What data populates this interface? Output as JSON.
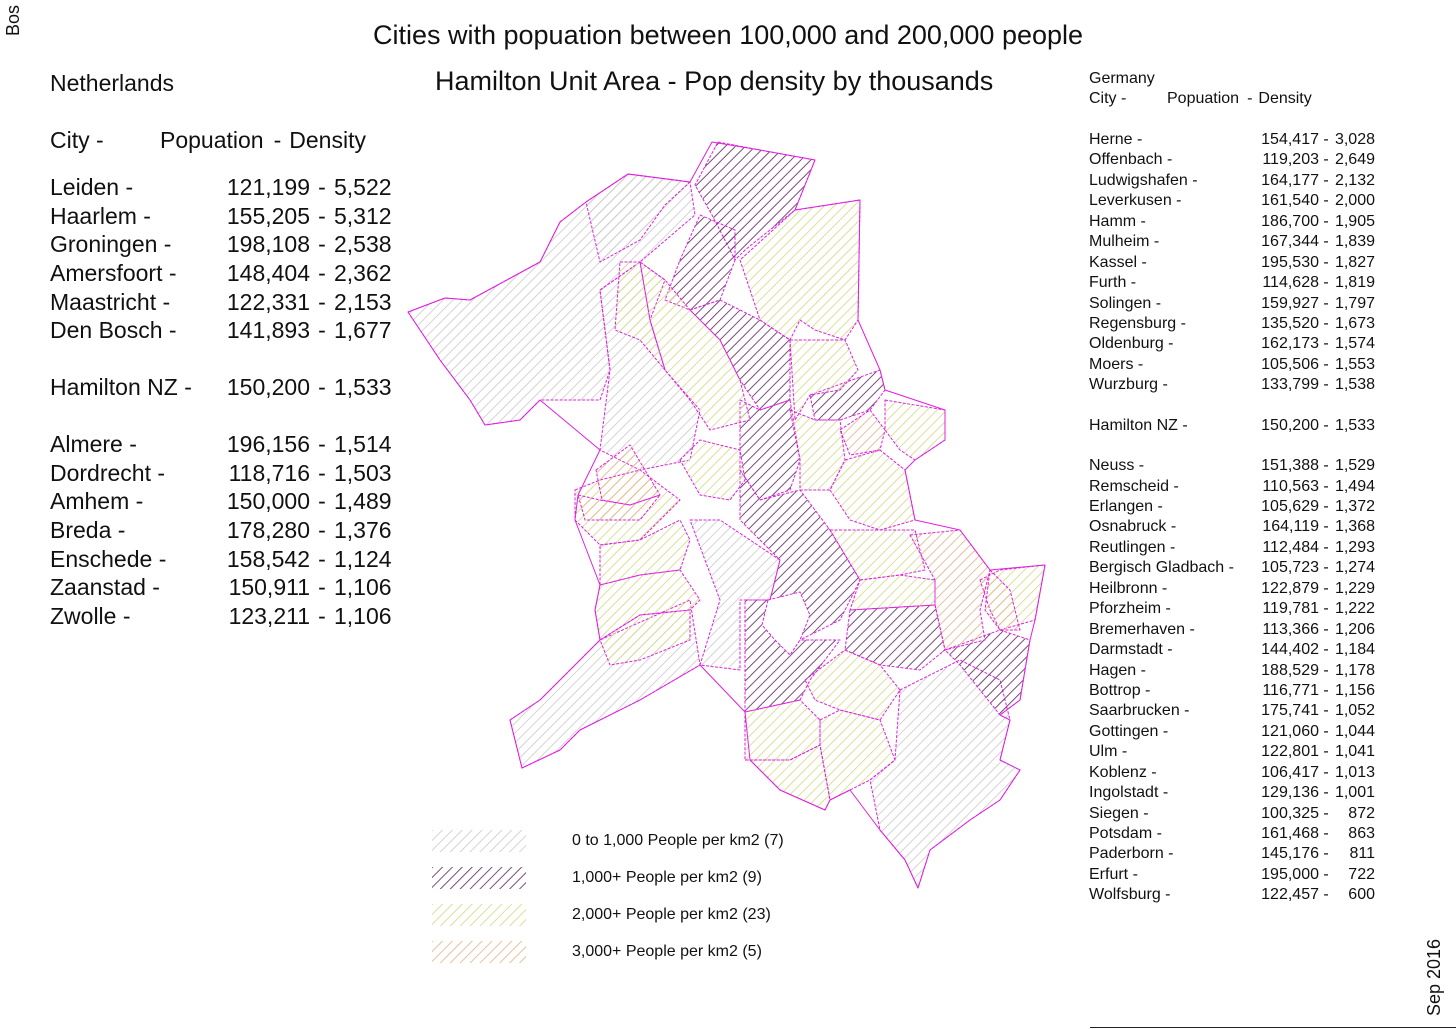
{
  "side_left": "Bos",
  "side_right": "Sep 2016",
  "title": "Cities with popuation between 100,000 and 200,000 people",
  "map_title": "Hamilton Unit Area - Pop density by thousands",
  "netherlands": {
    "country": "Netherlands",
    "header": {
      "city": "City -",
      "population": "Popuation",
      "sep": "-",
      "density": "Density"
    },
    "rows_top": [
      {
        "city": "Leiden -",
        "population": "121,199",
        "density": "5,522"
      },
      {
        "city": "Haarlem -",
        "population": "155,205",
        "density": "5,312"
      },
      {
        "city": "Groningen -",
        "population": "198,108",
        "density": "2,538"
      },
      {
        "city": "Amersfoort -",
        "population": "148,404",
        "density": "2,362"
      },
      {
        "city": "Maastricht -",
        "population": "122,331",
        "density": "2,153"
      },
      {
        "city": "Den Bosch -",
        "population": "141,893",
        "density": "1,677"
      }
    ],
    "hamilton": {
      "city": "Hamilton NZ -",
      "population": "150,200",
      "density": "1,533"
    },
    "rows_bottom": [
      {
        "city": "Almere -",
        "population": "196,156",
        "density": "1,514"
      },
      {
        "city": "Dordrecht -",
        "population": "118,716",
        "density": "1,503"
      },
      {
        "city": "Amhem -",
        "population": "150,000",
        "density": "1,489"
      },
      {
        "city": "Breda -",
        "population": "178,280",
        "density": "1,376"
      },
      {
        "city": "Enschede -",
        "population": "158,542",
        "density": "1,124"
      },
      {
        "city": "Zaanstad -",
        "population": "150,911",
        "density": "1,106"
      },
      {
        "city": "Zwolle -",
        "population": "123,211",
        "density": "1,106"
      }
    ]
  },
  "germany": {
    "country": "Germany",
    "header": {
      "city": "City -",
      "population": "Popuation",
      "sep": "-",
      "density": "Density"
    },
    "rows_top": [
      {
        "city": "Herne -",
        "population": "154,417",
        "density": "3,028"
      },
      {
        "city": "Offenbach -",
        "population": "119,203",
        "density": "2,649"
      },
      {
        "city": "Ludwigshafen -",
        "population": "164,177",
        "density": "2,132"
      },
      {
        "city": "Leverkusen -",
        "population": "161,540",
        "density": "2,000"
      },
      {
        "city": "Hamm -",
        "population": "186,700",
        "density": "1,905"
      },
      {
        "city": "Mulheim -",
        "population": "167,344",
        "density": "1,839"
      },
      {
        "city": "Kassel -",
        "population": "195,530",
        "density": "1,827"
      },
      {
        "city": "Furth -",
        "population": "114,628",
        "density": "1,819"
      },
      {
        "city": "Solingen -",
        "population": "159,927",
        "density": "1,797"
      },
      {
        "city": "Regensburg -",
        "population": "135,520",
        "density": "1,673"
      },
      {
        "city": "Oldenburg -",
        "population": "162,173",
        "density": "1,574"
      },
      {
        "city": "Moers -",
        "population": "105,506",
        "density": "1,553"
      },
      {
        "city": "Wurzburg -",
        "population": "133,799",
        "density": "1,538"
      }
    ],
    "hamilton": {
      "city": "Hamilton NZ -",
      "population": "150,200",
      "density": "1,533"
    },
    "rows_bottom": [
      {
        "city": "Neuss -",
        "population": "151,388",
        "density": "1,529"
      },
      {
        "city": "Remscheid -",
        "population": "110,563",
        "density": "1,494"
      },
      {
        "city": "Erlangen -",
        "population": "105,629",
        "density": "1,372"
      },
      {
        "city": "Osnabruck -",
        "population": "164,119",
        "density": "1,368"
      },
      {
        "city": "Reutlingen -",
        "population": "112,484",
        "density": "1,293"
      },
      {
        "city": "Bergisch Gladbach -",
        "population": "105,723",
        "density": "1,274"
      },
      {
        "city": "Heilbronn -",
        "population": "122,879",
        "density": "1,229"
      },
      {
        "city": "Pforzheim -",
        "population": "119,781",
        "density": "1,222"
      },
      {
        "city": "Bremerhaven -",
        "population": "113,366",
        "density": "1,206"
      },
      {
        "city": "Darmstadt -",
        "population": "144,402",
        "density": "1,184"
      },
      {
        "city": "Hagen -",
        "population": "188,529",
        "density": "1,178"
      },
      {
        "city": "Bottrop -",
        "population": "116,771",
        "density": "1,156"
      },
      {
        "city": "Saarbrucken -",
        "population": "175,741",
        "density": "1,052"
      },
      {
        "city": "Gottingen -",
        "population": "121,060",
        "density": "1,044"
      },
      {
        "city": "Ulm -",
        "population": "122,801",
        "density": "1,041"
      },
      {
        "city": "Koblenz -",
        "population": "106,417",
        "density": "1,013"
      },
      {
        "city": "Ingolstadt -",
        "population": "129,136",
        "density": "1,001"
      },
      {
        "city": "Siegen -",
        "population": "100,325",
        "density": "872"
      },
      {
        "city": "Potsdam -",
        "population": "161,468",
        "density": "863"
      },
      {
        "city": "Paderborn -",
        "population": "145,176",
        "density": "811"
      },
      {
        "city": "Erfurt -",
        "population": "195,000",
        "density": "722"
      },
      {
        "city": "Wolfsburg -",
        "population": "122,457",
        "density": "600"
      }
    ]
  },
  "legend": [
    {
      "label": "0 to 1,000 People per km2 (7)",
      "color": "#c9c9c9"
    },
    {
      "label": "1,000+ People per km2 (9)",
      "color": "#6b3a6b"
    },
    {
      "label": "2,000+ People per km2 (23)",
      "color": "#d8dc8c"
    },
    {
      "label": "3,000+ People per km2 (5)",
      "color": "#e6b98e"
    }
  ],
  "colors": {
    "boundary": "#e020e0"
  }
}
